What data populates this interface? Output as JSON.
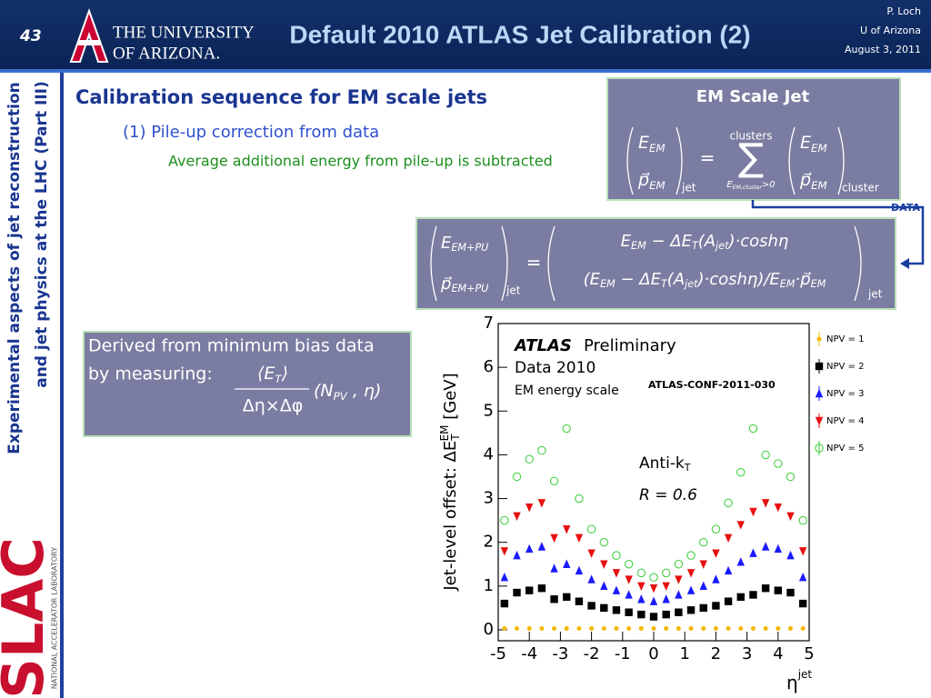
{
  "header": {
    "slide_number": "43",
    "logo_line1": "THE UNIVERSITY",
    "logo_line2": "OF ARIZONA.",
    "title": "Default 2010 ATLAS Jet Calibration (2)",
    "author": "P. Loch",
    "affiliation": "U of Arizona",
    "date": "August 3, 2011"
  },
  "sidebar": {
    "line1": "Experimental aspects of jet reconstruction",
    "line2": "and jet physics at the LHC (Part III)",
    "lab_logo": "SLAC",
    "lab_name": "NATIONAL ACCELERATOR LABORATORY"
  },
  "content": {
    "heading": "Calibration sequence for EM scale jets",
    "subheading": "(1) Pile-up correction from data",
    "detail": "Average additional energy from pile-up is subtracted"
  },
  "em_box": {
    "title": "EM Scale Jet",
    "lhs_top": [
      "E",
      "EM"
    ],
    "lhs_bottom": [
      "p⃗",
      "EM"
    ],
    "lhs_sub": "jet",
    "equals": "=",
    "sum_symbol": "∑",
    "sum_top": "clusters",
    "sum_bottom": [
      "E",
      "EM,cluster",
      ">0"
    ],
    "rhs_top": [
      "E",
      "EM"
    ],
    "rhs_bottom": [
      "p⃗",
      "EM"
    ],
    "rhs_sub": "cluster"
  },
  "data_label": "DATA",
  "pileup_box": {
    "lhs_top": [
      "E",
      "EM+PU"
    ],
    "lhs_bottom": [
      "p⃗",
      "EM+PU"
    ],
    "lhs_sub": "jet",
    "equals": "=",
    "rhs_top": [
      "E",
      "EM",
      " − ΔE",
      "T",
      "(A",
      "jet",
      ")·coshη"
    ],
    "rhs_bottom": [
      "(E",
      "EM",
      " − ΔE",
      "T",
      "(A",
      "jet",
      ")·coshη)/E",
      "EM",
      "·p⃗",
      "EM"
    ],
    "rhs_sub": "jet"
  },
  "derived_box": {
    "line1": "Derived from minimum bias data",
    "line2": "by measuring:",
    "numerator": [
      "⟨E",
      "T",
      "⟩"
    ],
    "denominator": "Δη×Δφ",
    "arguments": [
      "(N",
      "PV",
      " , η)"
    ]
  },
  "chart_data": {
    "type": "scatter",
    "x": [
      -4.8,
      -4.4,
      -4.0,
      -3.6,
      -3.2,
      -2.8,
      -2.4,
      -2.0,
      -1.6,
      -1.2,
      -0.8,
      -0.4,
      0,
      0.4,
      0.8,
      1.2,
      1.6,
      2.0,
      2.4,
      2.8,
      3.2,
      3.6,
      4.0,
      4.4,
      4.8
    ],
    "series": [
      {
        "name": "NPV = 1",
        "color": "#f2b800",
        "marker": "dot",
        "values": [
          0.03,
          0.03,
          0.03,
          0.03,
          0.03,
          0.03,
          0.03,
          0.03,
          0.03,
          0.03,
          0.03,
          0.03,
          0.03,
          0.03,
          0.03,
          0.03,
          0.03,
          0.03,
          0.03,
          0.03,
          0.03,
          0.03,
          0.03,
          0.03,
          0.03
        ]
      },
      {
        "name": "NPV = 2",
        "color": "#000000",
        "marker": "square",
        "values": [
          0.6,
          0.85,
          0.9,
          0.95,
          0.7,
          0.75,
          0.65,
          0.55,
          0.5,
          0.45,
          0.4,
          0.35,
          0.3,
          0.35,
          0.4,
          0.45,
          0.5,
          0.55,
          0.65,
          0.75,
          0.8,
          0.95,
          0.9,
          0.85,
          0.6
        ]
      },
      {
        "name": "NPV = 3",
        "color": "#1a1aff",
        "marker": "triangle-up",
        "values": [
          1.2,
          1.7,
          1.85,
          1.9,
          1.4,
          1.5,
          1.35,
          1.15,
          1.0,
          0.9,
          0.8,
          0.7,
          0.65,
          0.7,
          0.8,
          0.9,
          1.0,
          1.15,
          1.35,
          1.55,
          1.75,
          1.9,
          1.85,
          1.7,
          1.2
        ]
      },
      {
        "name": "NPV = 4",
        "color": "#e81010",
        "marker": "triangle-down",
        "values": [
          1.8,
          2.6,
          2.8,
          2.9,
          2.1,
          2.3,
          2.1,
          1.75,
          1.5,
          1.3,
          1.15,
          1.0,
          0.95,
          1.0,
          1.15,
          1.3,
          1.5,
          1.75,
          2.1,
          2.4,
          2.7,
          2.9,
          2.8,
          2.6,
          1.8
        ]
      },
      {
        "name": "NPV = 5",
        "color": "#33cc33",
        "marker": "open-circle",
        "values": [
          2.5,
          3.5,
          3.9,
          4.1,
          3.4,
          4.6,
          3.0,
          2.3,
          2.0,
          1.7,
          1.5,
          1.3,
          1.2,
          1.3,
          1.5,
          1.7,
          2.0,
          2.3,
          2.9,
          3.6,
          4.6,
          4.0,
          3.8,
          3.5,
          2.5
        ]
      }
    ],
    "xlim": [
      -5,
      5
    ],
    "ylim": [
      -0.25,
      7
    ],
    "xticks": [
      -5,
      -4,
      -3,
      -2,
      -1,
      0,
      1,
      2,
      3,
      4,
      5
    ],
    "yticks": [
      0,
      1,
      2,
      3,
      4,
      5,
      6,
      7
    ],
    "ylabel": {
      "main": "Jet-level offset: ΔE",
      "sub": "T",
      "sup": "EM",
      "unit": " [GeV]"
    },
    "xlabel": {
      "main": "η",
      "sup": "jet"
    },
    "annotations": {
      "experiment": "ATLAS",
      "status": "Preliminary",
      "dataset": "Data 2010",
      "scale": "EM energy scale",
      "reference": "ATLAS-CONF-2011-030",
      "algorithm": [
        "Anti-k",
        "T"
      ],
      "radius": "R = 0.6"
    },
    "legend": "right"
  }
}
